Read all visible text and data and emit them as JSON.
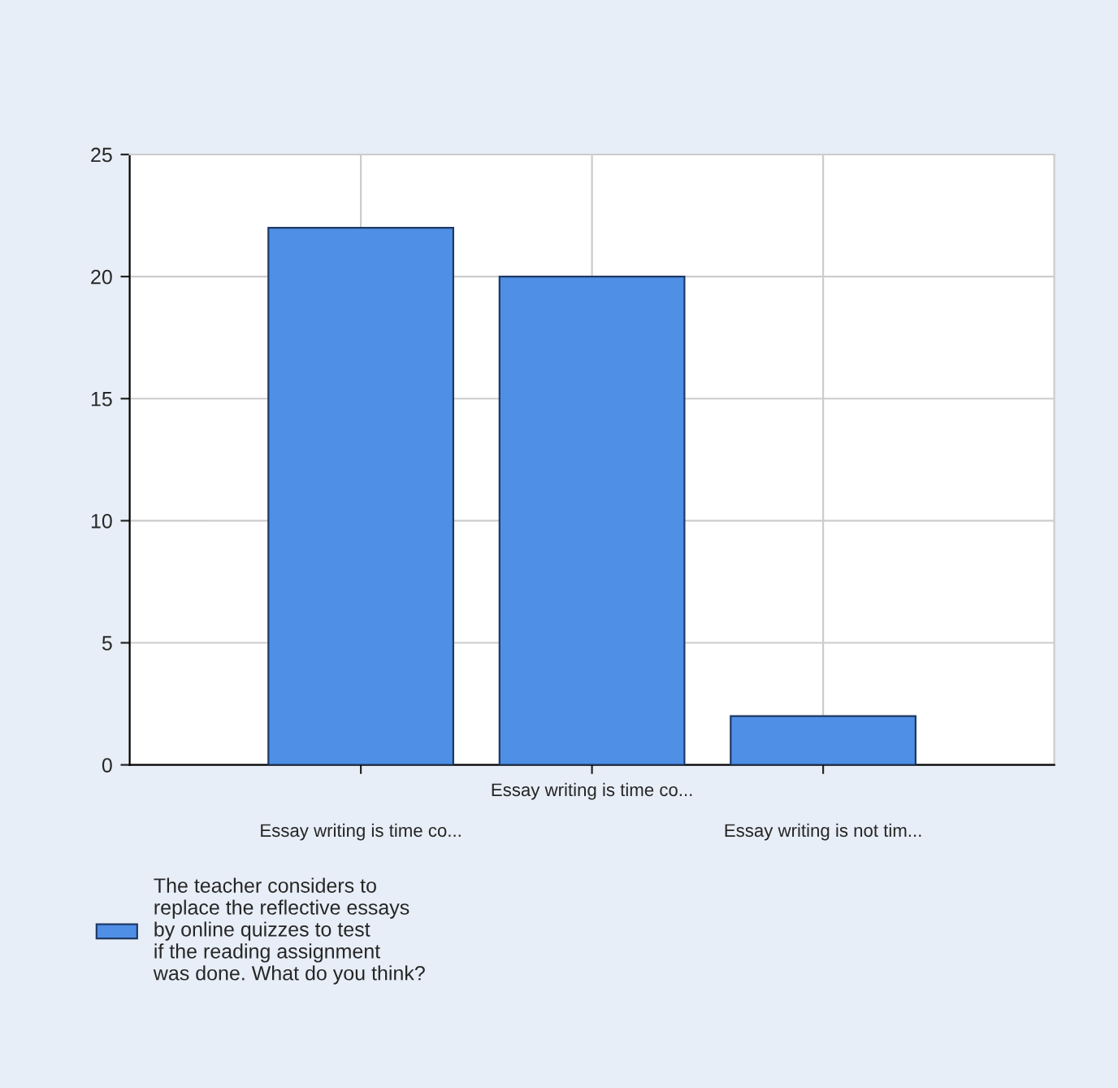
{
  "chart_data": {
    "type": "bar",
    "categories": [
      "Essay writing is time co...",
      "Essay writing is time co...",
      "Essay writing is not tim..."
    ],
    "series": [
      {
        "name": "The teacher considers to\nreplace the reflective essays\nby online quizzes to test\nif the reading assignment\nwas done. What do you think?",
        "color": "#4f8fe6",
        "values": [
          22,
          20,
          2
        ]
      }
    ],
    "ylim": [
      0,
      25
    ],
    "yticks": [
      0,
      5,
      10,
      15,
      20,
      25
    ],
    "grid": true,
    "legend": "bottom left"
  }
}
